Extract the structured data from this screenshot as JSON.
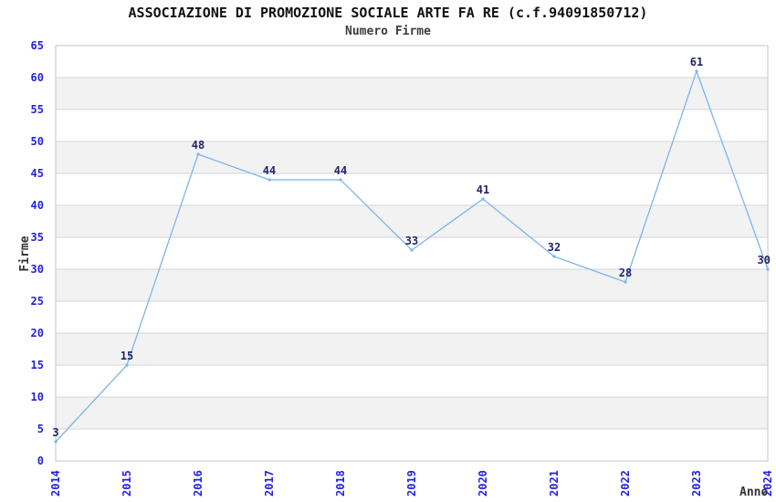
{
  "chart_data": {
    "type": "line",
    "title": "ASSOCIAZIONE DI PROMOZIONE SOCIALE ARTE FA RE (c.f.94091850712)",
    "subtitle": "Numero Firme",
    "xlabel": "Anno",
    "ylabel": "Firme",
    "categories": [
      "2014",
      "2015",
      "2016",
      "2017",
      "2018",
      "2019",
      "2020",
      "2021",
      "2022",
      "2023",
      "2024"
    ],
    "values": [
      3,
      15,
      48,
      44,
      44,
      33,
      41,
      32,
      28,
      61,
      30
    ],
    "ylim": [
      0,
      65
    ],
    "ytick_step": 5,
    "yticks": [
      0,
      5,
      10,
      15,
      20,
      25,
      30,
      35,
      40,
      45,
      50,
      55,
      60,
      65
    ],
    "grid": "horizontal-gridlines-with-alternating-bands",
    "legend": "none",
    "data_labels_visible": true,
    "colors": {
      "line": "#7cb5ec",
      "marker": "#7cb5ec",
      "tick_label": "#2222dd",
      "data_label": "#23236e",
      "band": "#f2f2f2",
      "gridline": "#d6d6d6",
      "plot_border": "#c4c4c4",
      "title": "#111111",
      "subtitle": "#3d3d3d",
      "axis_label": "#333333",
      "background": "#ffffff"
    }
  }
}
